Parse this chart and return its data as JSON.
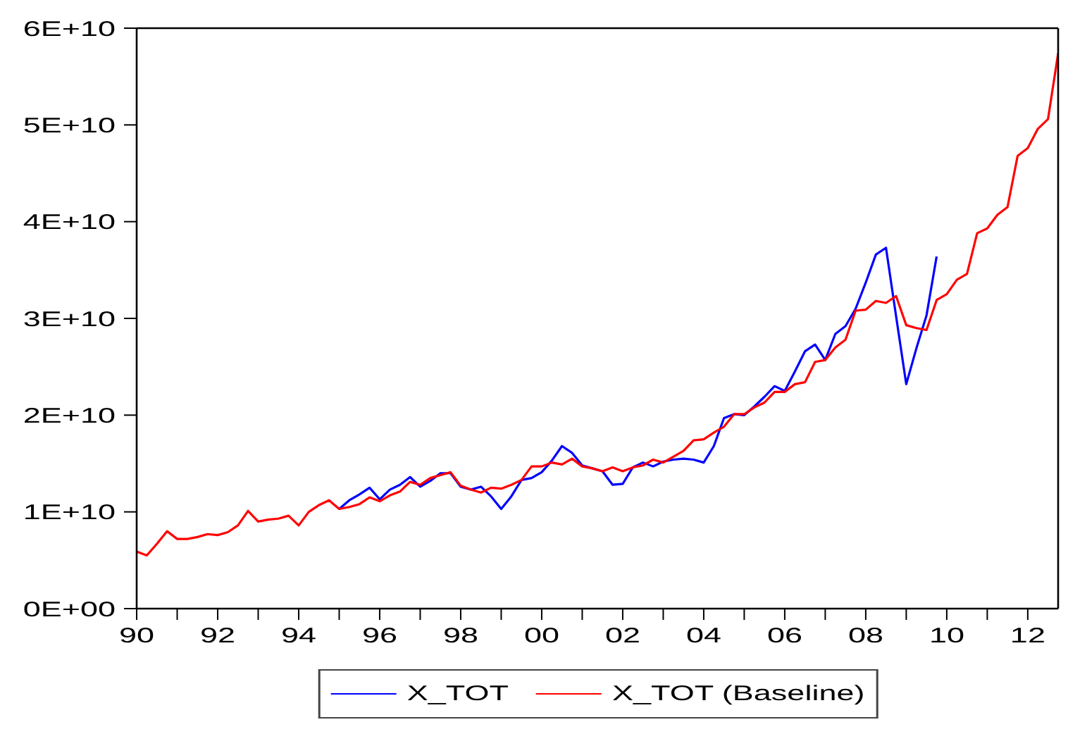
{
  "chart_data": {
    "type": "line",
    "x": [
      "1990-01",
      "1990-04",
      "1990-07",
      "1990-10",
      "1991-01",
      "1991-04",
      "1991-07",
      "1991-10",
      "1992-01",
      "1992-04",
      "1992-07",
      "1992-10",
      "1993-01",
      "1993-04",
      "1993-07",
      "1993-10",
      "1994-01",
      "1994-04",
      "1994-07",
      "1994-10",
      "1995-01",
      "1995-04",
      "1995-07",
      "1995-10",
      "1996-01",
      "1996-04",
      "1996-07",
      "1996-10",
      "1997-01",
      "1997-04",
      "1997-07",
      "1997-10",
      "1998-01",
      "1998-04",
      "1998-07",
      "1998-10",
      "1999-01",
      "1999-04",
      "1999-07",
      "1999-10",
      "2000-01",
      "2000-04",
      "2000-07",
      "2000-10",
      "2001-01",
      "2001-04",
      "2001-07",
      "2001-10",
      "2002-01",
      "2002-04",
      "2002-07",
      "2002-10",
      "2003-01",
      "2003-04",
      "2003-07",
      "2003-10",
      "2004-01",
      "2004-04",
      "2004-07",
      "2004-10",
      "2005-01",
      "2005-04",
      "2005-07",
      "2005-10",
      "2006-01",
      "2006-04",
      "2006-07",
      "2006-10",
      "2007-01",
      "2007-04",
      "2007-07",
      "2007-10",
      "2008-01",
      "2008-04",
      "2008-07",
      "2008-10",
      "2009-01",
      "2009-04",
      "2009-07",
      "2009-10",
      "2010-01",
      "2010-04",
      "2010-07",
      "2010-10",
      "2011-01",
      "2011-04",
      "2011-07",
      "2011-10",
      "2012-01",
      "2012-04",
      "2012-07",
      "2012-10"
    ],
    "series": [
      {
        "name": "X_TOT",
        "color": "#0000ff",
        "values": [
          null,
          null,
          null,
          null,
          null,
          null,
          null,
          null,
          null,
          null,
          null,
          null,
          null,
          null,
          null,
          null,
          null,
          null,
          null,
          null,
          10300000000.0,
          11200000000.0,
          11800000000.0,
          12500000000.0,
          11300000000.0,
          12300000000.0,
          12800000000.0,
          13600000000.0,
          12600000000.0,
          13200000000.0,
          14000000000.0,
          14000000000.0,
          12600000000.0,
          12300000000.0,
          12600000000.0,
          11600000000.0,
          10300000000.0,
          11600000000.0,
          13300000000.0,
          13500000000.0,
          14100000000.0,
          15300000000.0,
          16800000000.0,
          16100000000.0,
          14800000000.0,
          14500000000.0,
          14200000000.0,
          12800000000.0,
          12900000000.0,
          14600000000.0,
          15100000000.0,
          14700000000.0,
          15200000000.0,
          15400000000.0,
          15500000000.0,
          15400000000.0,
          15100000000.0,
          16800000000.0,
          19700000000.0,
          20100000000.0,
          20000000000.0,
          20900000000.0,
          21900000000.0,
          23000000000.0,
          22500000000.0,
          24500000000.0,
          26600000000.0,
          27300000000.0,
          25700000000.0,
          28400000000.0,
          29200000000.0,
          31000000000.0,
          33700000000.0,
          36600000000.0,
          37300000000.0,
          30200000000.0,
          23200000000.0,
          26900000000.0,
          30300000000.0,
          36400000000.0,
          null,
          null,
          null,
          null,
          null,
          null,
          null,
          null,
          null,
          null,
          null,
          null
        ]
      },
      {
        "name": "X_TOT (Baseline)",
        "color": "#ff0000",
        "values": [
          5900000000.0,
          5500000000.0,
          6700000000.0,
          8000000000.0,
          7200000000.0,
          7200000000.0,
          7400000000.0,
          7700000000.0,
          7600000000.0,
          7900000000.0,
          8600000000.0,
          10100000000.0,
          9000000000.0,
          9200000000.0,
          9300000000.0,
          9600000000.0,
          8600000000.0,
          10000000000.0,
          10700000000.0,
          11200000000.0,
          10300000000.0,
          10500000000.0,
          10800000000.0,
          11500000000.0,
          11100000000.0,
          11700000000.0,
          12100000000.0,
          13100000000.0,
          12800000000.0,
          13500000000.0,
          13800000000.0,
          14100000000.0,
          12700000000.0,
          12300000000.0,
          12000000000.0,
          12500000000.0,
          12400000000.0,
          12800000000.0,
          13300000000.0,
          14700000000.0,
          14700000000.0,
          15100000000.0,
          14900000000.0,
          15500000000.0,
          14700000000.0,
          14500000000.0,
          14200000000.0,
          14600000000.0,
          14200000000.0,
          14600000000.0,
          14800000000.0,
          15400000000.0,
          15100000000.0,
          15700000000.0,
          16300000000.0,
          17400000000.0,
          17500000000.0,
          18200000000.0,
          18800000000.0,
          20100000000.0,
          20100000000.0,
          20800000000.0,
          21300000000.0,
          22400000000.0,
          22400000000.0,
          23200000000.0,
          23400000000.0,
          25500000000.0,
          25700000000.0,
          27000000000.0,
          27800000000.0,
          30800000000.0,
          30900000000.0,
          31800000000.0,
          31600000000.0,
          32300000000.0,
          29300000000.0,
          29000000000.0,
          28800000000.0,
          31900000000.0,
          32500000000.0,
          34000000000.0,
          34600000000.0,
          38800000000.0,
          39300000000.0,
          40700000000.0,
          41500000000.0,
          46800000000.0,
          47600000000.0,
          49600000000.0,
          50600000000.0,
          57400000000.0
        ]
      }
    ],
    "xlim": [
      "1990-01",
      "2012-10"
    ],
    "xticks": [
      {
        "value": "1990",
        "label": "90"
      },
      {
        "value": "1991",
        "label": null
      },
      {
        "value": "1992",
        "label": "92"
      },
      {
        "value": "1993",
        "label": null
      },
      {
        "value": "1994",
        "label": "94"
      },
      {
        "value": "1995",
        "label": null
      },
      {
        "value": "1996",
        "label": "96"
      },
      {
        "value": "1997",
        "label": null
      },
      {
        "value": "1998",
        "label": "98"
      },
      {
        "value": "1999",
        "label": null
      },
      {
        "value": "2000",
        "label": "00"
      },
      {
        "value": "2001",
        "label": null
      },
      {
        "value": "2002",
        "label": "02"
      },
      {
        "value": "2003",
        "label": null
      },
      {
        "value": "2004",
        "label": "04"
      },
      {
        "value": "2005",
        "label": null
      },
      {
        "value": "2006",
        "label": "06"
      },
      {
        "value": "2007",
        "label": null
      },
      {
        "value": "2008",
        "label": "08"
      },
      {
        "value": "2009",
        "label": null
      },
      {
        "value": "2010",
        "label": "10"
      },
      {
        "value": "2011",
        "label": null
      },
      {
        "value": "2012",
        "label": "12"
      }
    ],
    "ylim": [
      0,
      60000000000.0
    ],
    "yticks": [
      {
        "value": 0,
        "label": "0E+00"
      },
      {
        "value": 10000000000.0,
        "label": "1E+10"
      },
      {
        "value": 20000000000.0,
        "label": "2E+10"
      },
      {
        "value": 30000000000.0,
        "label": "3E+10"
      },
      {
        "value": 40000000000.0,
        "label": "4E+10"
      },
      {
        "value": 50000000000.0,
        "label": "5E+10"
      },
      {
        "value": 60000000000.0,
        "label": "6E+10"
      }
    ],
    "legend": "bottom",
    "marker": "none",
    "line_style": "solid"
  }
}
